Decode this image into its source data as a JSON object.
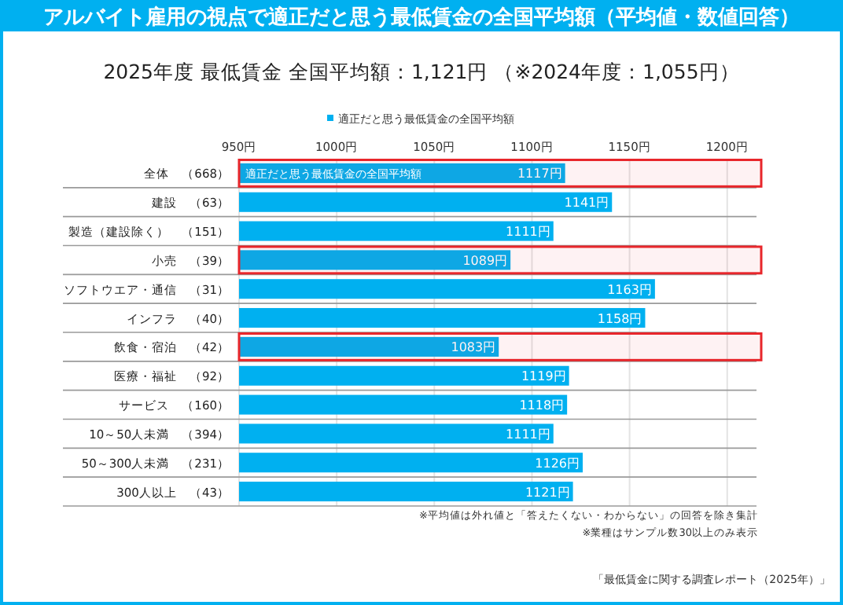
{
  "chart_data": {
    "type": "bar",
    "orientation": "horizontal",
    "title": "アルバイト雇用の視点で適正だと思う最低賃金の全国平均額（平均値・数値回答）",
    "subtitle": "2025年度 最低賃金 全国平均額：1,121円 （※2024年度：1,055円）",
    "categories": [
      "全体　（668）",
      "建設　（63）",
      "製造（建設除く）　（151）",
      "小売　（39）",
      "ソフトウエア・通信　（31）",
      "インフラ　（40）",
      "飲食・宿泊　（42）",
      "医療・福祉　（92）",
      "サービス　（160）",
      "10～50人未満　（394）",
      "50～300人未満　（231）",
      "300人以上　（43）"
    ],
    "series": [
      {
        "name": "適正だと思う最低賃金の全国平均額",
        "color": "#00b0f0",
        "values": [
          1117,
          1141,
          1111,
          1089,
          1163,
          1158,
          1083,
          1119,
          1118,
          1111,
          1126,
          1121
        ],
        "value_labels": [
          "1117円",
          "1141円",
          "1111円",
          "1089円",
          "1163円",
          "1158円",
          "1083円",
          "1119円",
          "1118円",
          "1111円",
          "1126円",
          "1121円"
        ]
      }
    ],
    "xlim": [
      950,
      1215
    ],
    "xticks": [
      {
        "value": 950,
        "label": "950円"
      },
      {
        "value": 1000,
        "label": "1000円"
      },
      {
        "value": 1050,
        "label": "1050円"
      },
      {
        "value": 1100,
        "label": "1100円"
      },
      {
        "value": 1150,
        "label": "1150円"
      },
      {
        "value": 1200,
        "label": "1200円"
      }
    ],
    "grid": true,
    "legend": "top",
    "bands": [
      {
        "axis": "y",
        "from": "全体　（668）",
        "to": "全体　（668）",
        "color": "#e8262b"
      },
      {
        "axis": "y",
        "from": "小売　（39）",
        "to": "小売　（39）",
        "color": "#e8262b"
      },
      {
        "axis": "y",
        "from": "飲食・宿泊　（42）",
        "to": "飲食・宿泊　（42）",
        "color": "#e8262b"
      }
    ],
    "annotations": [
      {
        "text": "適正だと思う最低賃金の全国平均額",
        "x": 950,
        "y": "全体　（668）"
      },
      "※平均値は外れ値と「答えたくない・わからない」の回答を除き集計",
      "※業種はサンプル数30以上のみ表示",
      "「最低賃金に関する調査レポート（2025年）」"
    ]
  }
}
